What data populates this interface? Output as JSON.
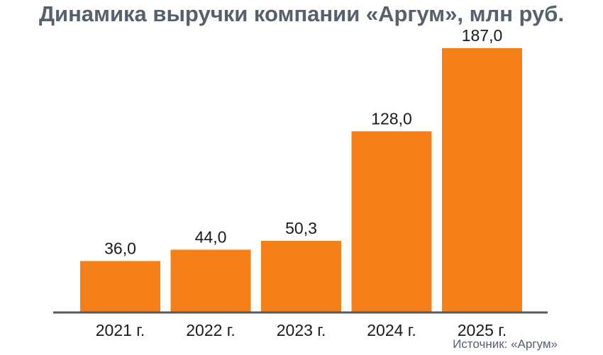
{
  "chart_data": {
    "type": "bar",
    "title": "Динамика выручки компании «Аргум», млн руб.",
    "categories": [
      "2021 г.",
      "2022 г.",
      "2023 г.",
      "2024 г.",
      "2025 г."
    ],
    "values": [
      36.0,
      44.0,
      50.3,
      128.0,
      187.0
    ],
    "value_labels": [
      "36,0",
      "44,0",
      "50,3",
      "128,0",
      "187,0"
    ],
    "xlabel": "",
    "ylabel": "",
    "ylim": [
      0,
      200
    ],
    "grid": false,
    "legend": "none",
    "bar_color": "#f5801a",
    "axis_color": "#58595b",
    "source": "Источник: «Аргум»"
  }
}
